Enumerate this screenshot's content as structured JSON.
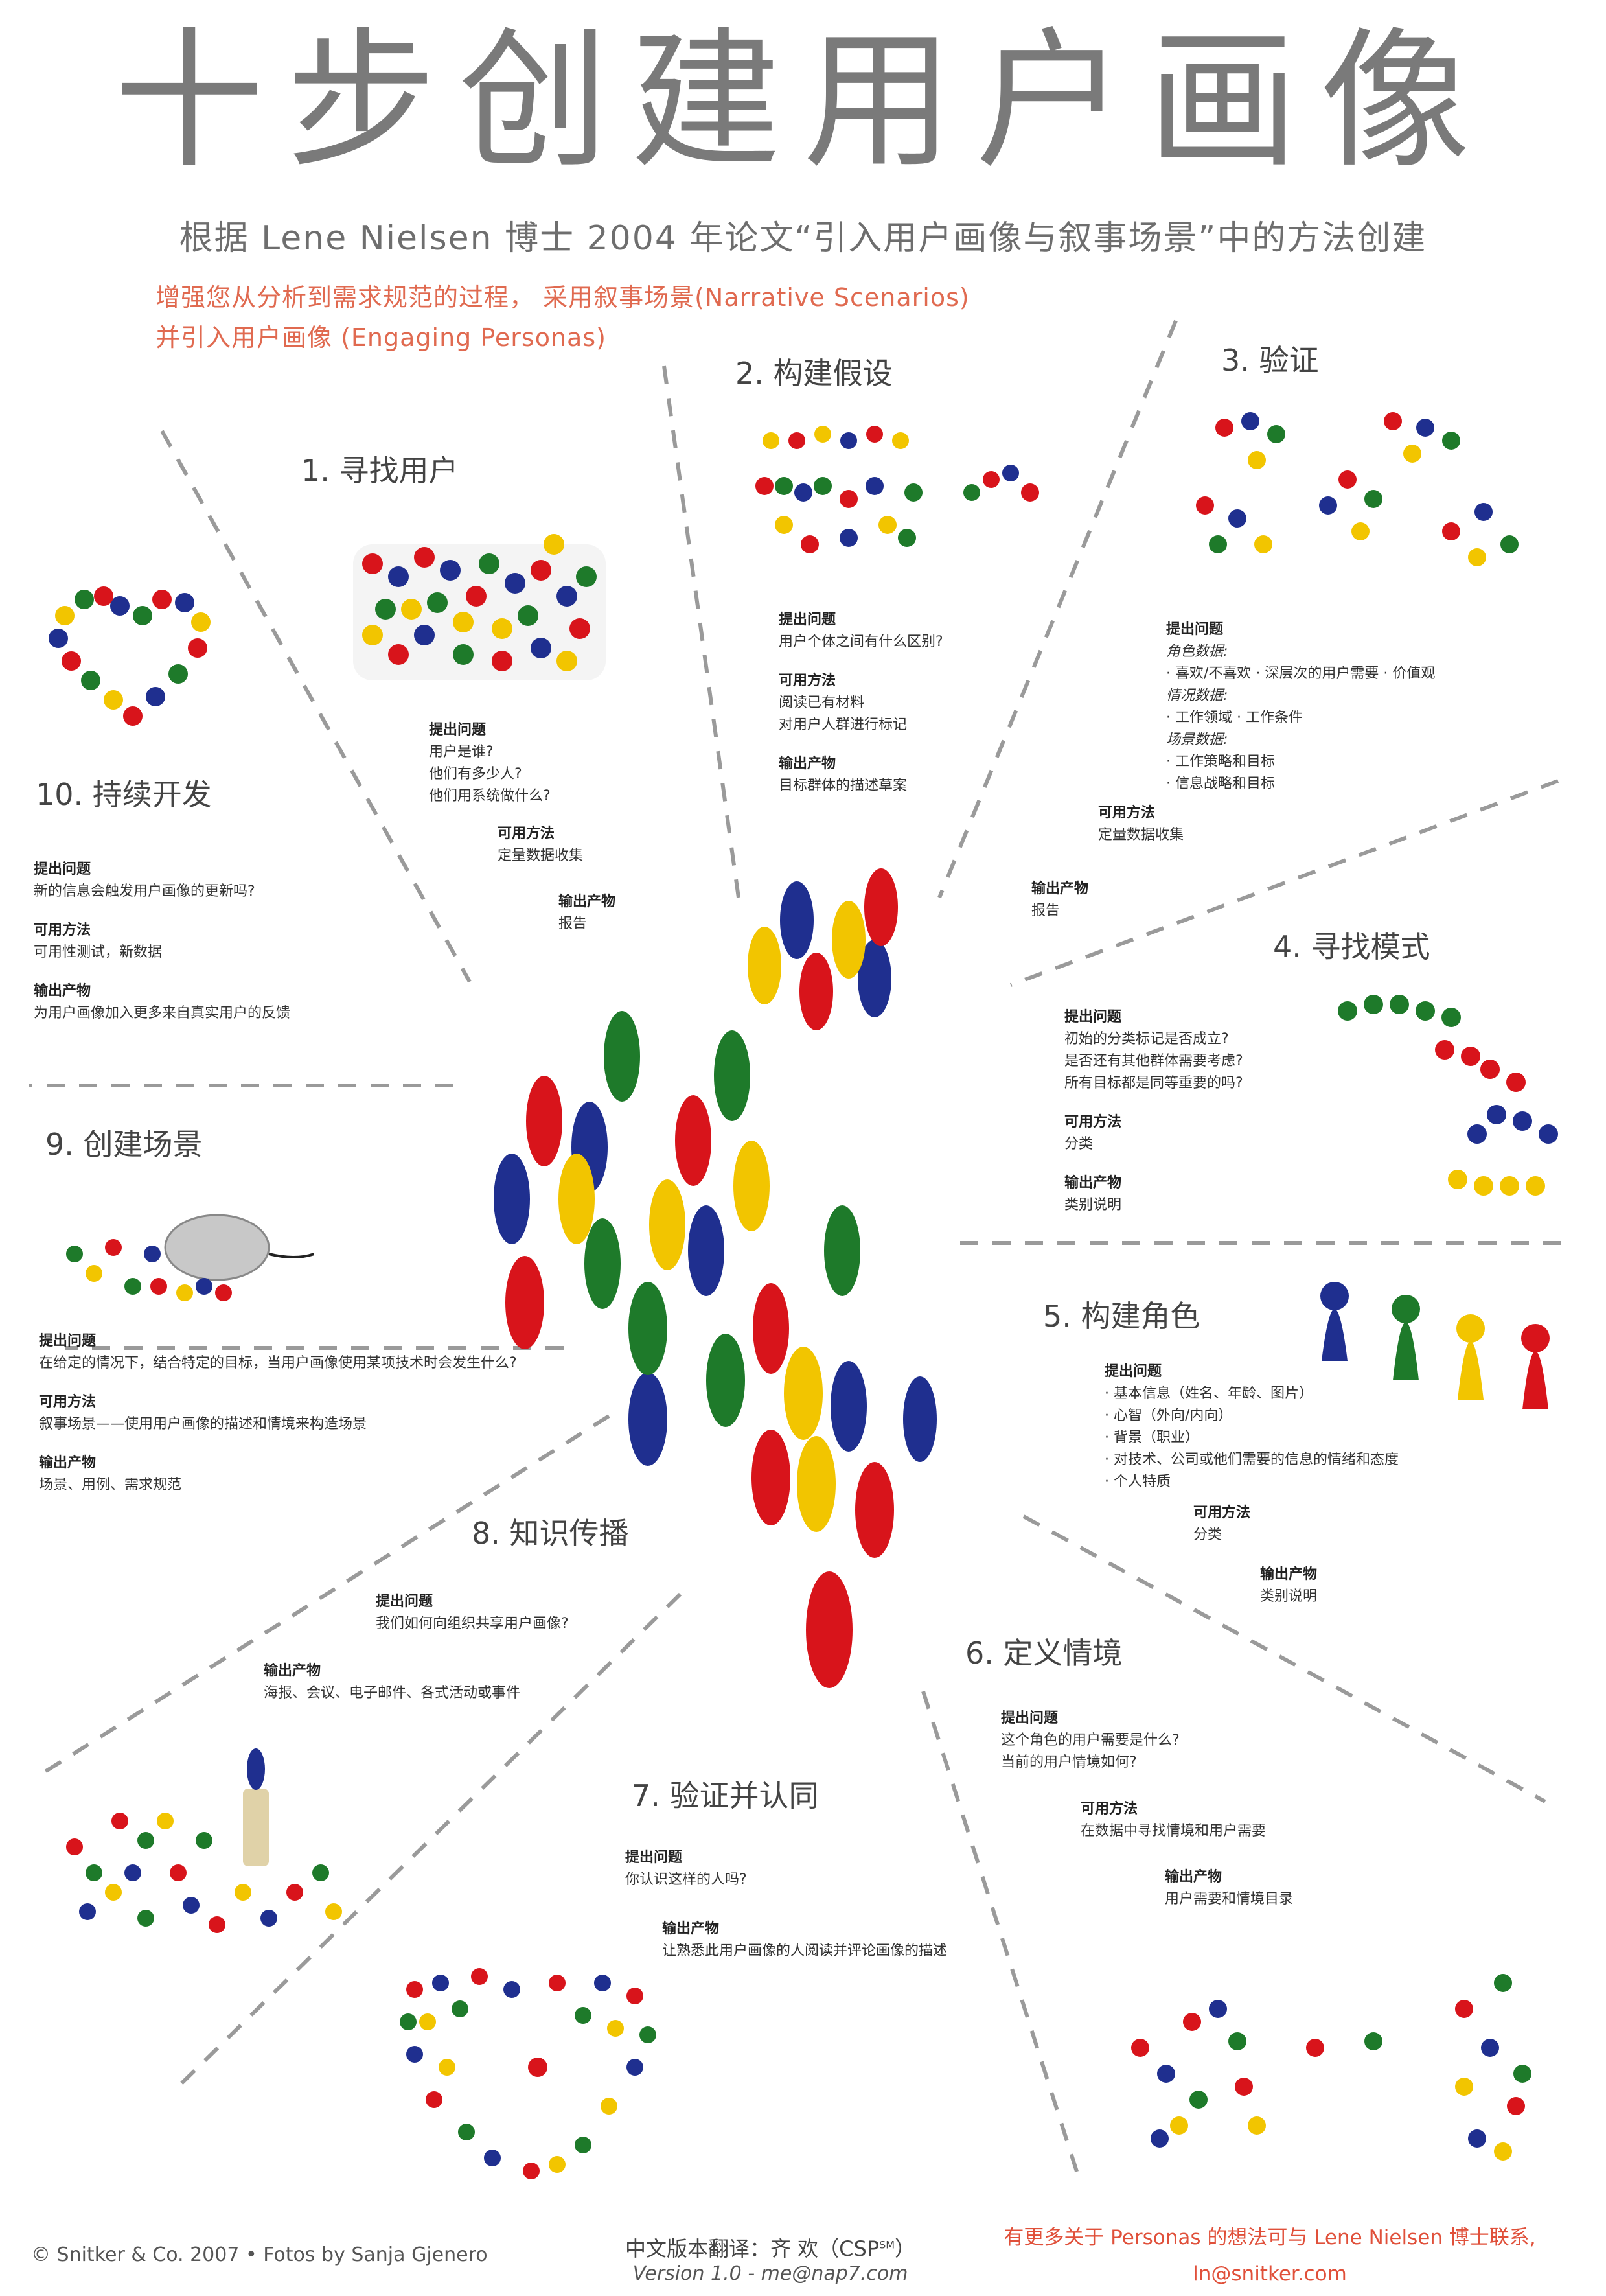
{
  "title": "十步创建用户画像",
  "subtitle": "根据 Lene Nielsen 博士 2004 年论文“引入用户画像与叙事场景”中的方法创建",
  "intro": {
    "line1": "增强您从分析到需求规范的过程， 采用叙事场景(Narrative Scenarios)",
    "line2": "并引入用户画像 (Engaging Personas)"
  },
  "labels": {
    "ask": "提出问题",
    "method": "可用方法",
    "output": "输出产物"
  },
  "steps": {
    "s1": {
      "title": "1. 寻找用户",
      "q": [
        "用户是谁?",
        "他们有多少人?",
        "他们用系统做什么?"
      ],
      "m": "定量数据收集",
      "o": "报告"
    },
    "s2": {
      "title": "2. 构建假设",
      "q": "用户个体之间有什么区别?",
      "m": [
        "阅读已有材料",
        "对用户人群进行标记"
      ],
      "o": "目标群体的描述草案"
    },
    "s3": {
      "title": "3. 验证",
      "sub1": "角色数据:",
      "items1": "·  喜欢/不喜欢  ·  深层次的用户需要  ·  价值观",
      "sub2": "情况数据:",
      "items2": "·  工作领域  ·  工作条件",
      "sub3": "场景数据:",
      "items3": [
        "·  工作策略和目标",
        "·  信息战略和目标"
      ],
      "m": "定量数据收集",
      "o": "报告"
    },
    "s4": {
      "title": "4. 寻找模式",
      "q": [
        "初始的分类标记是否成立?",
        "是否还有其他群体需要考虑?",
        "所有目标都是同等重要的吗?"
      ],
      "m": "分类",
      "o": "类别说明"
    },
    "s5": {
      "title": "5. 构建角色",
      "q": [
        "·  基本信息（姓名、年龄、图片）",
        "·  心智（外向/内向）",
        "·  背景（职业）",
        "·  对技术、公司或他们需要的信息的情绪和态度",
        "·  个人特质"
      ],
      "m": "分类",
      "o": "类别说明"
    },
    "s6": {
      "title": "6. 定义情境",
      "q": [
        "这个角色的用户需要是什么?",
        "当前的用户情境如何?"
      ],
      "m": "在数据中寻找情境和用户需要",
      "o": "用户需要和情境目录"
    },
    "s7": {
      "title": "7. 验证并认同",
      "q": "你认识这样的人吗?",
      "o": "让熟悉此用户画像的人阅读并评论画像的描述"
    },
    "s8": {
      "title": "8. 知识传播",
      "q": "我们如何向组织共享用户画像?",
      "o": "海报、会议、电子邮件、各式活动或事件"
    },
    "s9": {
      "title": "9. 创建场景",
      "q": "在给定的情况下，结合特定的目标，当用户画像使用某项技术时会发生什么?",
      "m": "叙事场景——使用用户画像的描述和情境来构造场景",
      "o": "场景、用例、需求规范"
    },
    "s10": {
      "title": "10. 持续开发",
      "q": "新的信息会触发用户画像的更新吗?",
      "m": "可用性测试，新数据",
      "o": "为用户画像加入更多来自真实用户的反馈"
    }
  },
  "colors": {
    "red": "#d8141b",
    "blue": "#1f2f8f",
    "green": "#1e7a2a",
    "yellow": "#f2c500",
    "accent": "#e0503a"
  },
  "footer": {
    "credits": "© Snitker & Co. 2007 • Fotos by Sanja Gjenero",
    "translation": "中文版本翻译：齐 欢（CSP",
    "sm": "SM",
    "translation_end": "）",
    "version": "Version 1.0 - me@nap7.com",
    "contact": "有更多关于 Personas 的想法可与 Lene Nielsen 博士联系,",
    "email": "ln@snitker.com"
  }
}
